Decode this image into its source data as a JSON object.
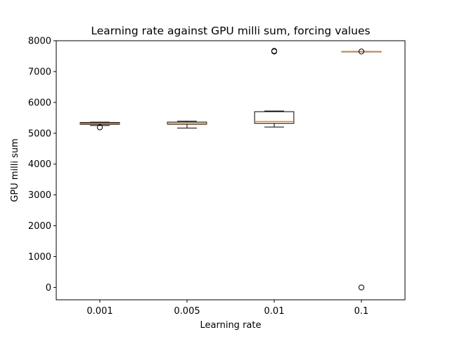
{
  "chart_data": {
    "type": "box",
    "title": "Learning rate against GPU milli sum, forcing values",
    "xlabel": "Learning rate",
    "ylabel": "GPU milli sum",
    "categories": [
      "0.001",
      "0.005",
      "0.01",
      "0.1"
    ],
    "ylim": [
      -400,
      8000
    ],
    "yticks": [
      0,
      1000,
      2000,
      3000,
      4000,
      5000,
      6000,
      7000,
      8000
    ],
    "grid": false,
    "boxes": [
      {
        "category": "0.001",
        "whisker_low": 5250,
        "q1": 5290,
        "median": 5320,
        "q3": 5350,
        "whisker_high": 5360,
        "outliers": [
          5190
        ]
      },
      {
        "category": "0.005",
        "whisker_low": 5170,
        "q1": 5290,
        "median": 5310,
        "q3": 5360,
        "whisker_high": 5390,
        "outliers": []
      },
      {
        "category": "0.01",
        "whisker_low": 5200,
        "q1": 5320,
        "median": 5380,
        "q3": 5700,
        "whisker_high": 5720,
        "outliers": [
          7650,
          7670
        ]
      },
      {
        "category": "0.1",
        "whisker_low": 7650,
        "q1": 7650,
        "median": 7650,
        "q3": 7650,
        "whisker_high": 7650,
        "outliers": [
          7650,
          0
        ]
      }
    ],
    "colors": {
      "box": "#000000",
      "median": "#ff7f0e",
      "outlier": "#000000"
    }
  }
}
